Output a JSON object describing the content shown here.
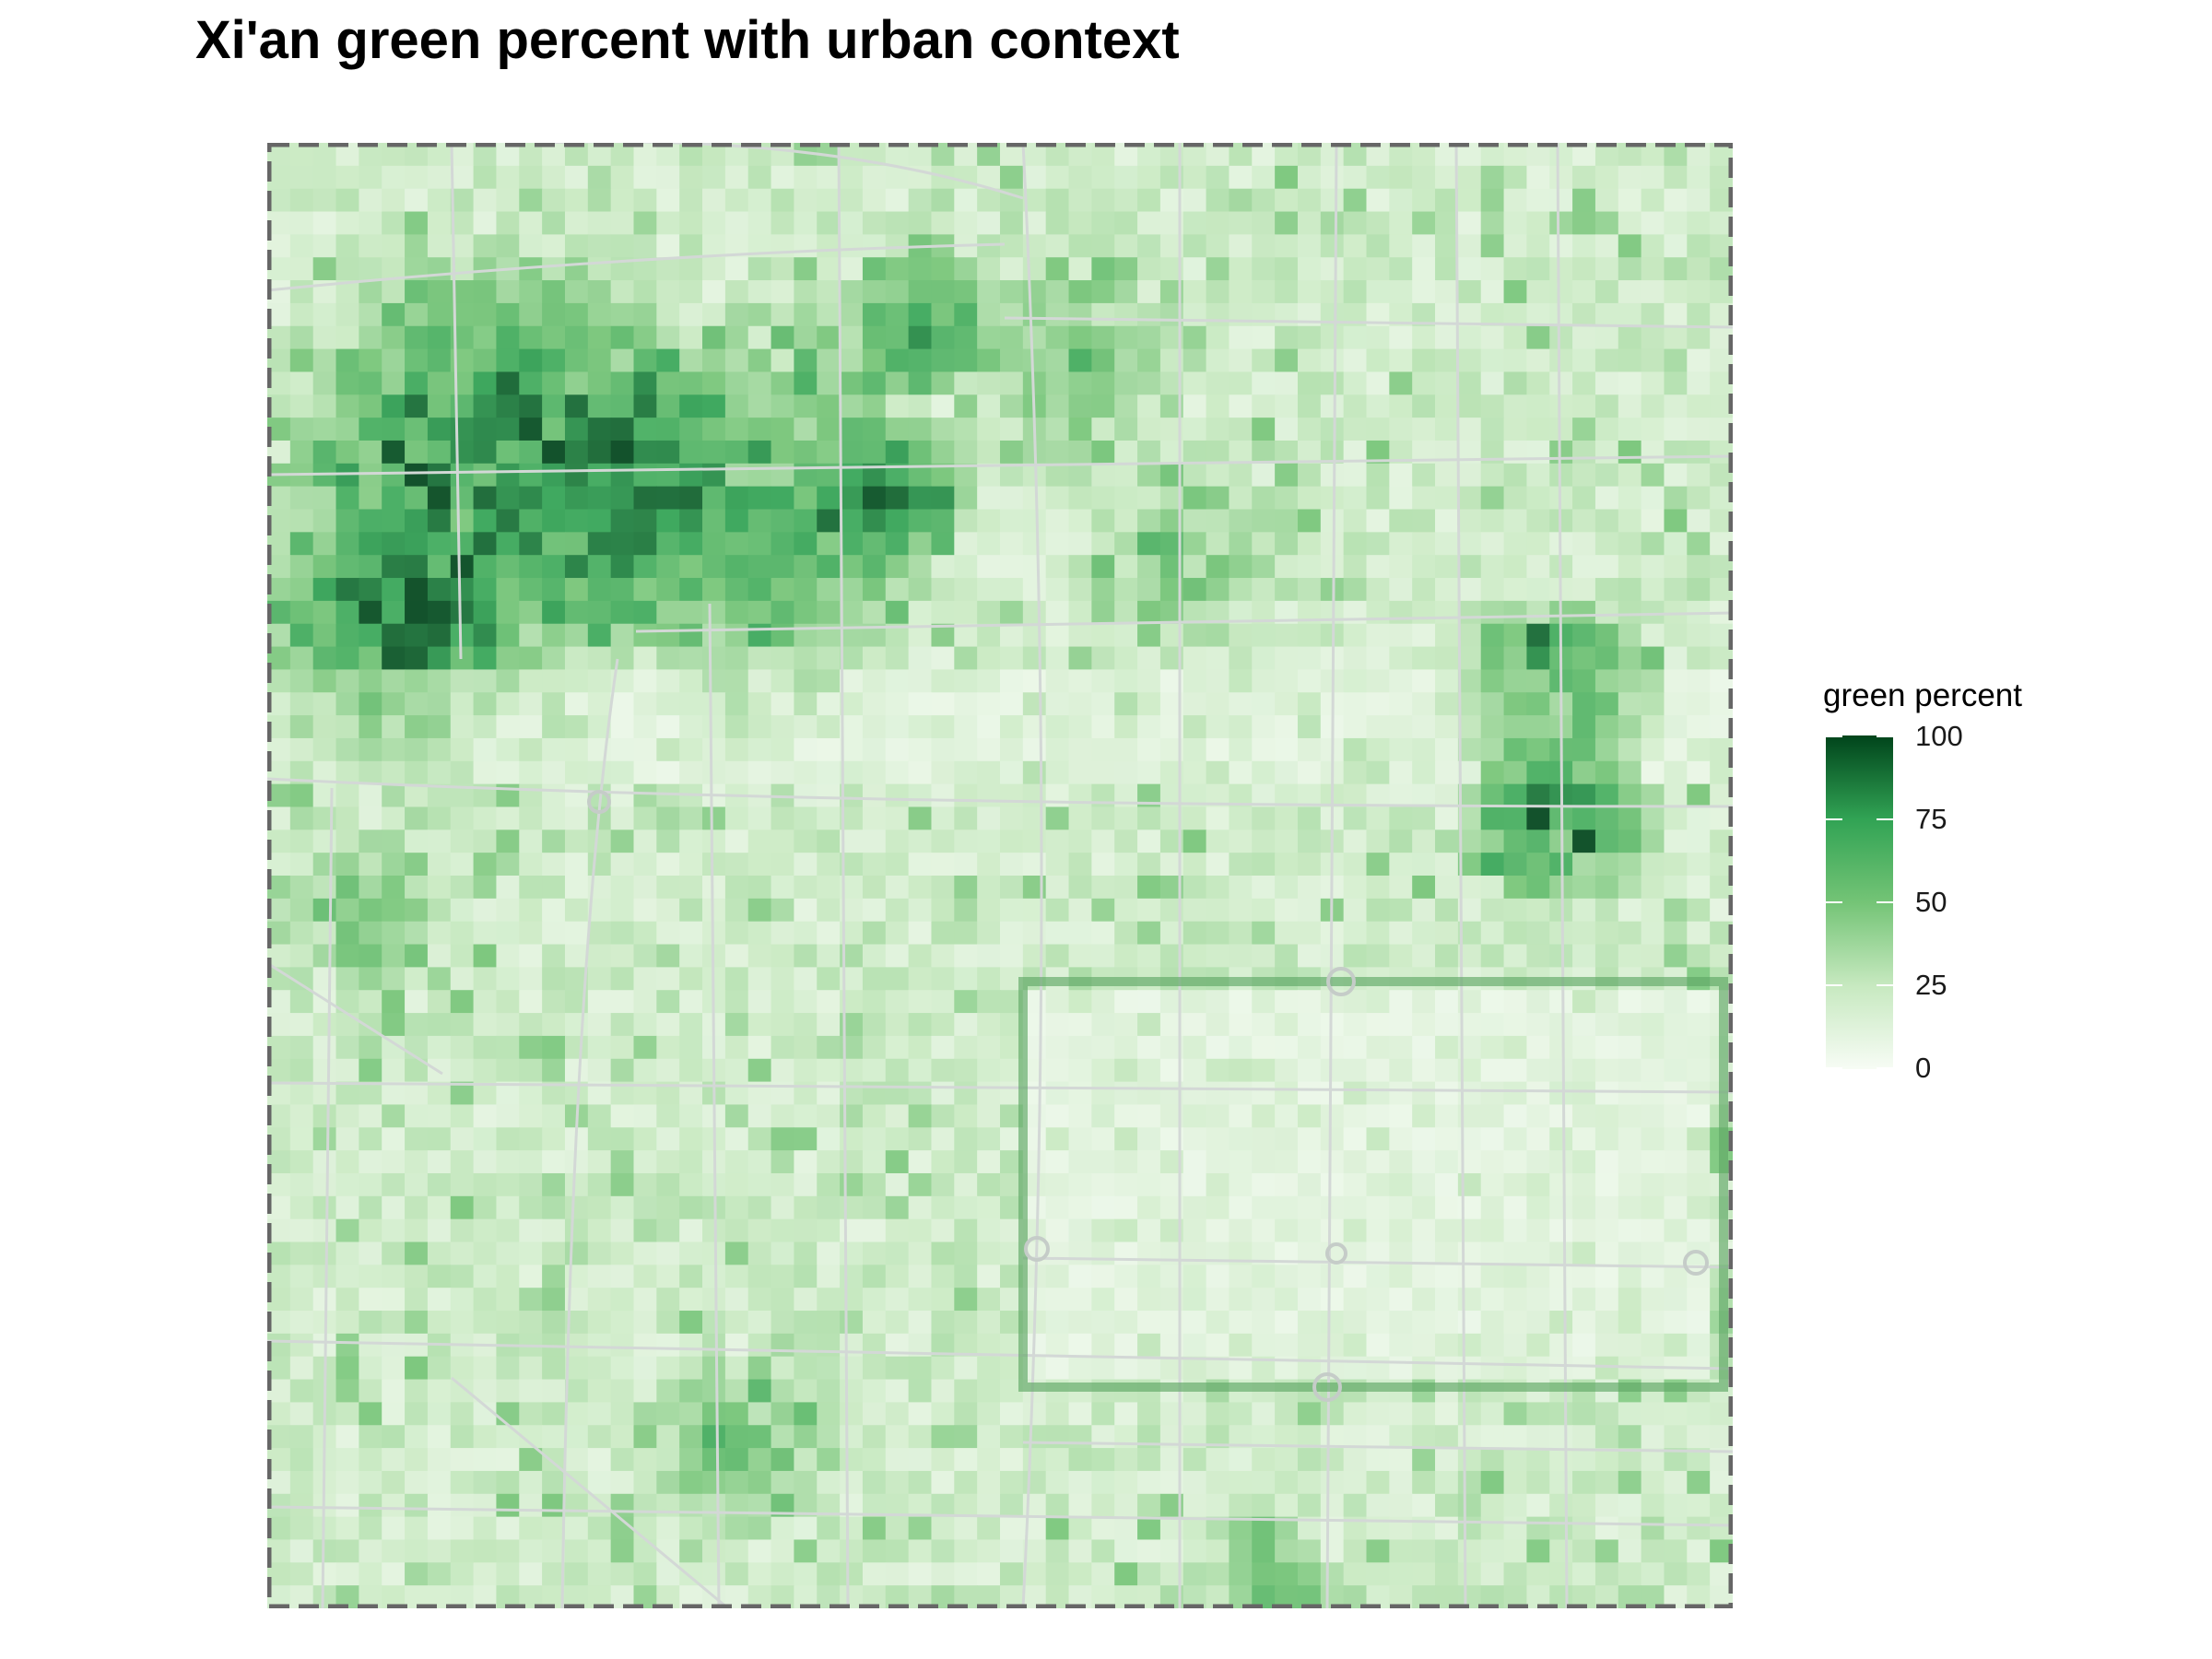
{
  "title": "Xi'an green percent with urban context",
  "legend": {
    "title": "green percent",
    "ticks": [
      "100",
      "75",
      "50",
      "25",
      "0"
    ],
    "range": [
      0,
      100
    ],
    "colors": [
      "#f7fcf5",
      "#c7e9c0",
      "#74c476",
      "#31a354",
      "#00441b"
    ]
  },
  "map": {
    "layers": [
      "green percent raster",
      "road network",
      "study area boundary"
    ],
    "boundary_style": "dashed",
    "boundary_color": "#666666",
    "road_color": "#d3d8d6",
    "notable_features": [
      "dense green cluster in north-west",
      "large green park block in east",
      "rectangular city wall and moat in south-east quadrant"
    ]
  }
}
